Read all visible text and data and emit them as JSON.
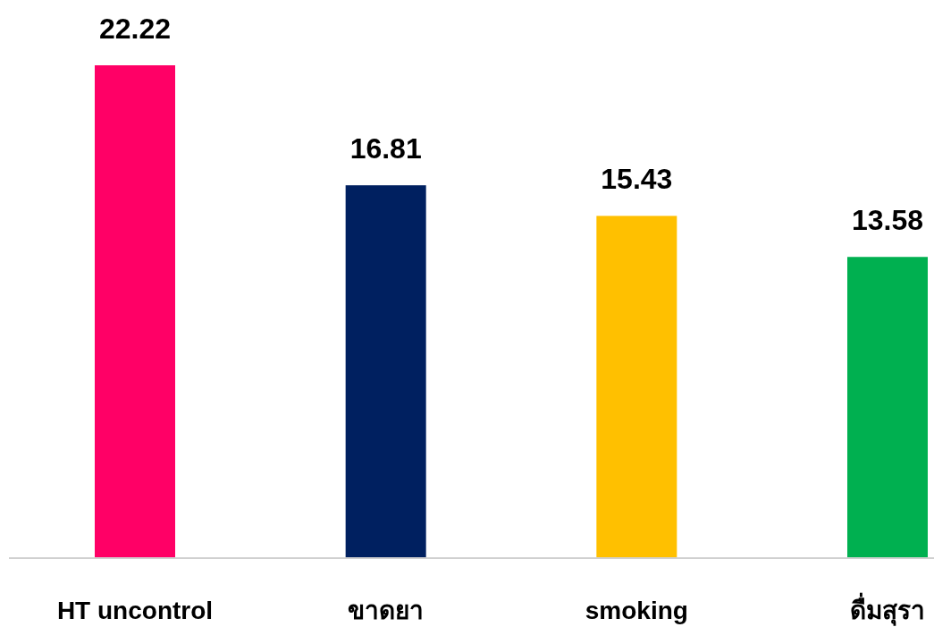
{
  "chart_data": {
    "type": "bar",
    "categories": [
      "HT uncontrol",
      "ขาดยา",
      "smoking",
      "ดื่มสุรา"
    ],
    "values": [
      22.22,
      16.81,
      15.43,
      13.58
    ],
    "colors": [
      "#ff0066",
      "#002060",
      "#ffc000",
      "#00b050"
    ],
    "data_labels": true
  }
}
